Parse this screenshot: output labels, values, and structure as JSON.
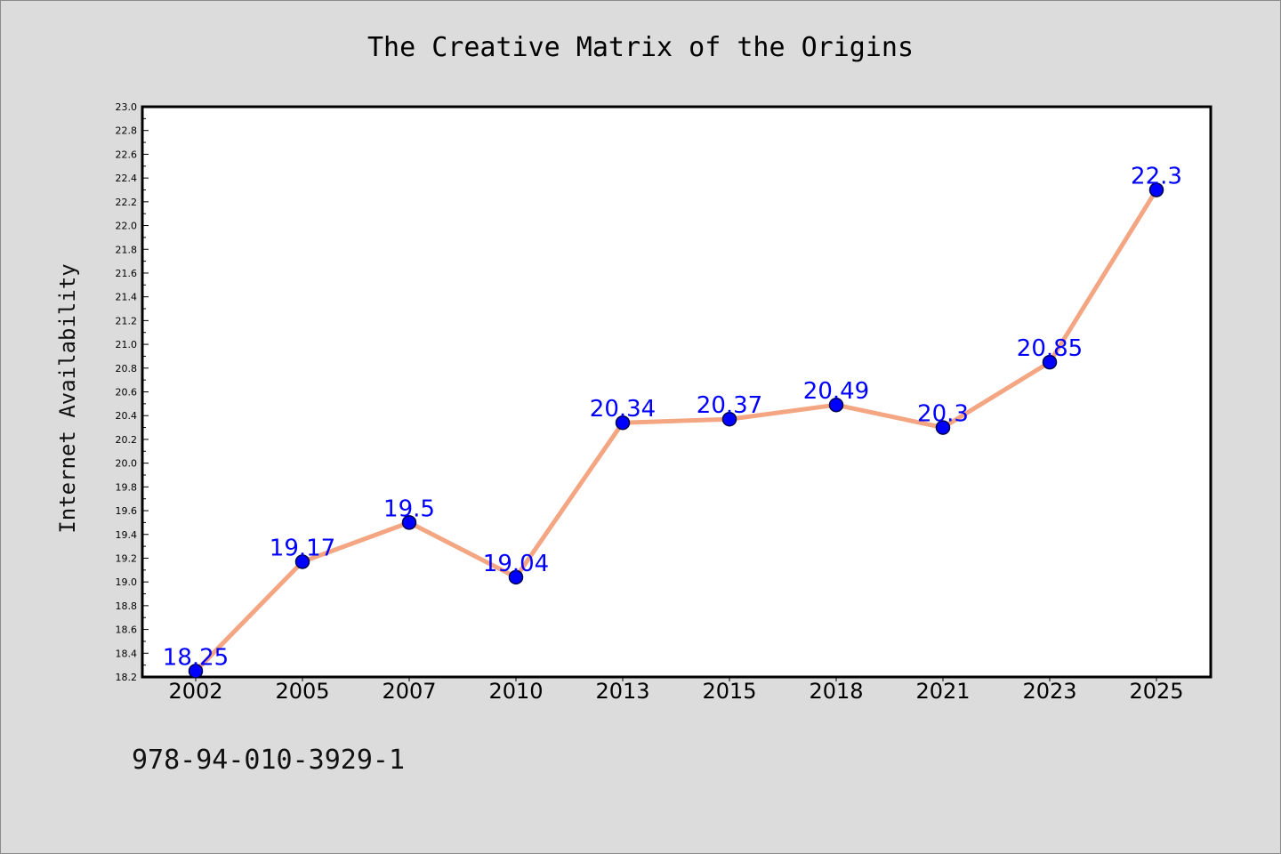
{
  "footer_code": "978-94-010-3929-1",
  "colors": {
    "background": "#dcdcdc",
    "plot_area": "#ffffff",
    "line": "#f4a582",
    "marker": "#0000ff",
    "data_label": "#0000ff"
  },
  "chart_data": {
    "type": "line",
    "title": "The Creative Matrix of the Origins",
    "xlabel": "",
    "ylabel": "Internet Availability",
    "categories": [
      "2002",
      "2005",
      "2007",
      "2010",
      "2013",
      "2015",
      "2018",
      "2021",
      "2023",
      "2025"
    ],
    "series": [
      {
        "values": [
          18.25,
          19.17,
          19.5,
          19.04,
          20.34,
          20.37,
          20.49,
          20.3,
          20.85,
          22.3
        ],
        "labels": [
          "18.25",
          "19.17",
          "19.5",
          "19.04",
          "20.34",
          "20.37",
          "20.49",
          "20.3",
          "20.85",
          "22.3"
        ]
      }
    ],
    "ylim": [
      18.2,
      23.0
    ],
    "yticks": [
      "18.2",
      "18.4",
      "18.6",
      "18.8",
      "19.0",
      "19.2",
      "19.4",
      "19.6",
      "19.8",
      "20.0",
      "20.2",
      "20.4",
      "20.6",
      "20.8",
      "21.0",
      "21.2",
      "21.4",
      "21.6",
      "21.8",
      "22.0",
      "22.2",
      "22.4",
      "22.6",
      "22.8",
      "23.0"
    ],
    "grid": false,
    "legend": "none"
  }
}
